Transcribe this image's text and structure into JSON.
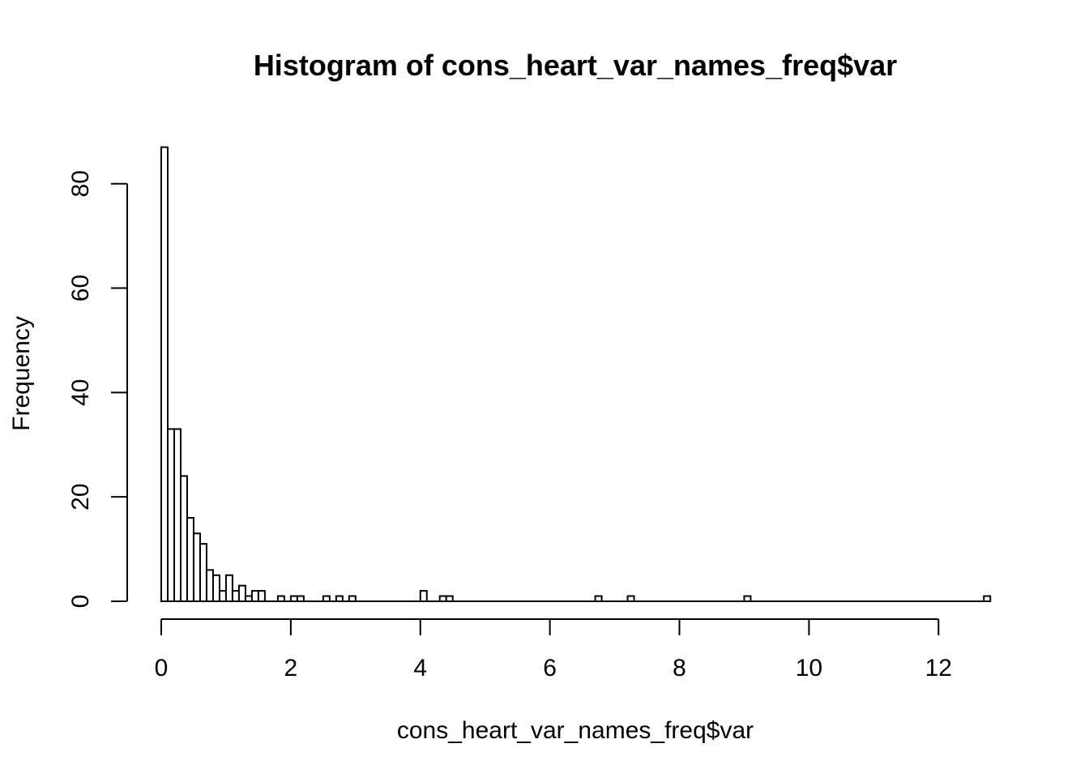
{
  "chart_data": {
    "type": "bar",
    "title": "Histogram of cons_heart_var_names_freq$var",
    "xlabel": "cons_heart_var_names_freq$var",
    "ylabel": "Frequency",
    "xlim": [
      0,
      12.8
    ],
    "ylim": [
      0,
      87
    ],
    "bin_width": 0.1,
    "x_ticks": [
      0,
      2,
      4,
      6,
      8,
      10,
      12
    ],
    "y_ticks": [
      0,
      20,
      40,
      60,
      80
    ],
    "grid": false,
    "legend": "none",
    "bar_fill": "#ffffff",
    "bar_stroke": "#000000",
    "bins": [
      {
        "start": 0.0,
        "end": 0.1,
        "count": 87
      },
      {
        "start": 0.1,
        "end": 0.2,
        "count": 33
      },
      {
        "start": 0.2,
        "end": 0.3,
        "count": 33
      },
      {
        "start": 0.3,
        "end": 0.4,
        "count": 24
      },
      {
        "start": 0.4,
        "end": 0.5,
        "count": 16
      },
      {
        "start": 0.5,
        "end": 0.6,
        "count": 13
      },
      {
        "start": 0.6,
        "end": 0.7,
        "count": 11
      },
      {
        "start": 0.7,
        "end": 0.8,
        "count": 6
      },
      {
        "start": 0.8,
        "end": 0.9,
        "count": 5
      },
      {
        "start": 0.9,
        "end": 1.0,
        "count": 2
      },
      {
        "start": 1.0,
        "end": 1.1,
        "count": 5
      },
      {
        "start": 1.1,
        "end": 1.2,
        "count": 2
      },
      {
        "start": 1.2,
        "end": 1.3,
        "count": 3
      },
      {
        "start": 1.3,
        "end": 1.4,
        "count": 1
      },
      {
        "start": 1.4,
        "end": 1.5,
        "count": 2
      },
      {
        "start": 1.5,
        "end": 1.6,
        "count": 2
      },
      {
        "start": 1.8,
        "end": 1.9,
        "count": 1
      },
      {
        "start": 2.0,
        "end": 2.1,
        "count": 1
      },
      {
        "start": 2.1,
        "end": 2.2,
        "count": 1
      },
      {
        "start": 2.5,
        "end": 2.6,
        "count": 1
      },
      {
        "start": 2.7,
        "end": 2.8,
        "count": 1
      },
      {
        "start": 2.9,
        "end": 3.0,
        "count": 1
      },
      {
        "start": 4.0,
        "end": 4.1,
        "count": 2
      },
      {
        "start": 4.3,
        "end": 4.4,
        "count": 1
      },
      {
        "start": 4.4,
        "end": 4.5,
        "count": 1
      },
      {
        "start": 6.7,
        "end": 6.8,
        "count": 1
      },
      {
        "start": 7.2,
        "end": 7.3,
        "count": 1
      },
      {
        "start": 9.0,
        "end": 9.1,
        "count": 1
      },
      {
        "start": 12.7,
        "end": 12.8,
        "count": 1
      }
    ]
  }
}
